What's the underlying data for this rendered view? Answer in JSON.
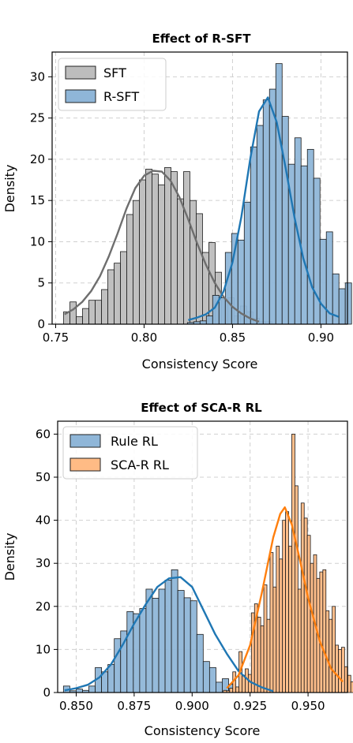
{
  "chart_data": [
    {
      "type": "histogram",
      "title": "Effect of R-SFT",
      "xlabel": "Consistency Score",
      "ylabel": "Density",
      "xlim": [
        0.748,
        0.915
      ],
      "ylim": [
        0,
        33
      ],
      "xticks": [
        0.75,
        0.8,
        0.85,
        0.9
      ],
      "xtick_labels": [
        "0.75",
        "0.80",
        "0.85",
        "0.90"
      ],
      "yticks": [
        0,
        5,
        10,
        15,
        20,
        25,
        30
      ],
      "ytick_labels": [
        "0",
        "5",
        "10",
        "15",
        "20",
        "25",
        "30"
      ],
      "grid": true,
      "legend_position": "top-left",
      "series": [
        {
          "name": "SFT",
          "fill": "#bdbdbd",
          "line_color": "#6e6e6e",
          "bin_start": 0.7545,
          "bin_width": 0.00357,
          "values": [
            1.5,
            2.7,
            0.9,
            1.9,
            2.9,
            2.9,
            4.2,
            6.6,
            7.4,
            8.8,
            13.3,
            15.0,
            17.5,
            18.8,
            18.2,
            16.9,
            19.0,
            18.5,
            15.2,
            18.5,
            15.0,
            13.4,
            8.7,
            9.9,
            6.3,
            3.0,
            3.2,
            1.0,
            2.2,
            1.5,
            0.7,
            0.3,
            0.3
          ],
          "kde_x": [
            0.755,
            0.76,
            0.765,
            0.77,
            0.775,
            0.78,
            0.785,
            0.79,
            0.795,
            0.8,
            0.805,
            0.81,
            0.815,
            0.82,
            0.825,
            0.83,
            0.835,
            0.84,
            0.845,
            0.85,
            0.855,
            0.86,
            0.865
          ],
          "kde_y": [
            1.2,
            1.8,
            2.7,
            4.0,
            5.8,
            8.2,
            11.0,
            14.0,
            16.5,
            18.0,
            18.6,
            18.5,
            17.4,
            15.4,
            12.7,
            9.8,
            7.2,
            5.0,
            3.3,
            2.1,
            1.3,
            0.7,
            0.3
          ]
        },
        {
          "name": "R-SFT",
          "fill": "#8fb6d8",
          "line_color": "#1f77b4",
          "bin_start": 0.8245,
          "bin_width": 0.00357,
          "values": [
            0.2,
            0.3,
            0.4,
            1.0,
            3.5,
            3.2,
            8.7,
            11.0,
            10.2,
            14.8,
            21.5,
            24.1,
            27.2,
            28.5,
            31.6,
            25.2,
            19.4,
            22.6,
            19.2,
            21.2,
            17.7,
            10.3,
            11.2,
            6.1,
            4.3,
            5.0
          ]
        }
      ],
      "kde_rsft_x": [
        0.825,
        0.83,
        0.835,
        0.84,
        0.845,
        0.85,
        0.855,
        0.86,
        0.865,
        0.87,
        0.875,
        0.88,
        0.885,
        0.89,
        0.895,
        0.9,
        0.905,
        0.91
      ],
      "kde_rsft_y": [
        0.5,
        0.8,
        1.2,
        2.0,
        4.0,
        7.5,
        13.0,
        20.0,
        25.8,
        27.5,
        24.5,
        19.0,
        13.0,
        8.0,
        4.5,
        2.5,
        1.3,
        0.9
      ]
    },
    {
      "type": "histogram",
      "title": "Effect of SCA-R RL",
      "xlabel": "Consistency Score",
      "ylabel": "Density",
      "xlim": [
        0.842,
        0.967
      ],
      "ylim": [
        0,
        63
      ],
      "xticks": [
        0.85,
        0.875,
        0.9,
        0.925,
        0.95
      ],
      "xtick_labels": [
        "0.850",
        "0.875",
        "0.900",
        "0.925",
        "0.950"
      ],
      "yticks": [
        0,
        10,
        20,
        30,
        40,
        50,
        60
      ],
      "ytick_labels": [
        "0",
        "10",
        "20",
        "30",
        "40",
        "50",
        "60"
      ],
      "grid": true,
      "legend_position": "top-left",
      "series": [
        {
          "name": "Rule RL",
          "fill": "#8fb6d8",
          "line_color": "#1f77b4",
          "bin_start": 0.8445,
          "bin_width": 0.00274,
          "values": [
            1.5,
            0.4,
            0.8,
            0.5,
            1.5,
            5.8,
            4.8,
            6.5,
            12.5,
            14.3,
            18.8,
            18.3,
            19.5,
            24.0,
            21.9,
            24.0,
            26.1,
            28.5,
            23.7,
            22.0,
            21.3,
            13.5,
            7.2,
            5.8,
            2.4,
            3.2,
            1.9,
            0.3
          ],
          "kde_x": [
            0.845,
            0.85,
            0.855,
            0.86,
            0.865,
            0.87,
            0.875,
            0.88,
            0.885,
            0.89,
            0.895,
            0.9,
            0.905,
            0.91,
            0.915,
            0.92,
            0.925,
            0.93,
            0.935
          ],
          "kde_y": [
            0.5,
            1.0,
            1.8,
            3.5,
            6.5,
            11.0,
            16.0,
            20.5,
            24.5,
            26.5,
            26.8,
            24.5,
            19.0,
            13.5,
            9.0,
            5.0,
            2.5,
            1.2,
            0.3
          ]
        },
        {
          "name": "SCA-R RL",
          "fill": "#ffbb85",
          "line_color": "#ff7f0e",
          "bin_start": 0.9135,
          "bin_width": 0.00134,
          "values": [
            0.5,
            0.4,
            1.0,
            4.8,
            1.3,
            9.5,
            4.0,
            5.5,
            4.2,
            18.5,
            20.6,
            17.5,
            15.5,
            25.0,
            17.0,
            32.5,
            24.5,
            34.0,
            31.0,
            40.0,
            42.0,
            34.0,
            60.0,
            48.0,
            24.0,
            44.0,
            40.5,
            36.5,
            30.0,
            32.0,
            26.5,
            28.0,
            28.5,
            19.0,
            17.0,
            20.0,
            11.0,
            10.0,
            10.5,
            6.0,
            4.0,
            2.5
          ]
        }
      ],
      "kde_scar_x": [
        0.915,
        0.92,
        0.925,
        0.93,
        0.935,
        0.938,
        0.94,
        0.943,
        0.946,
        0.95,
        0.955,
        0.96,
        0.965
      ],
      "kde_scar_y": [
        1.0,
        4.0,
        11.0,
        23.0,
        36.0,
        41.5,
        43.0,
        39.0,
        32.0,
        22.0,
        12.0,
        5.5,
        2.5
      ]
    }
  ]
}
